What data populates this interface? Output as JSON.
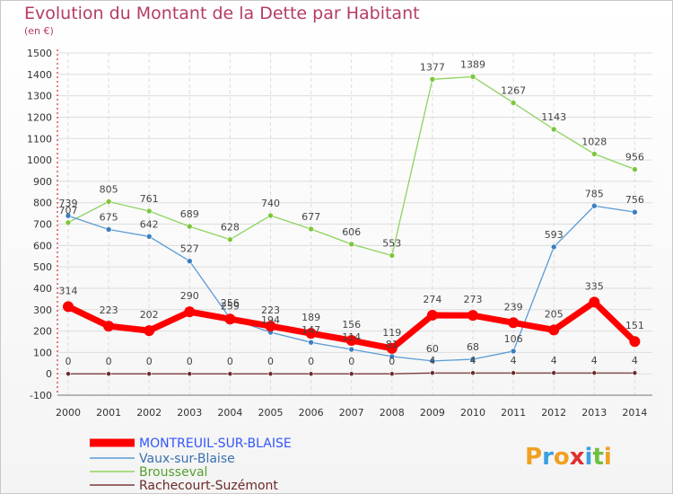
{
  "chart_data": {
    "type": "line",
    "title": "Evolution du Montant de la Dette par Habitant",
    "subtitle": "(en €)",
    "x": [
      "2000",
      "2001",
      "2002",
      "2003",
      "2004",
      "2005",
      "2006",
      "2007",
      "2008",
      "2009",
      "2010",
      "2011",
      "2012",
      "2013",
      "2014"
    ],
    "ylim": [
      -100,
      1500
    ],
    "yticks": [
      -100,
      0,
      100,
      200,
      300,
      400,
      500,
      600,
      700,
      800,
      900,
      1000,
      1100,
      1200,
      1300,
      1400,
      1500
    ],
    "grid": true,
    "legend_position": "bottom-left",
    "series": [
      {
        "name": "MONTREUIL-SUR-BLAISE",
        "color": "#ff0000",
        "values": [
          314,
          223,
          202,
          290,
          256,
          223,
          189,
          156,
          119,
          274,
          273,
          239,
          205,
          335,
          151
        ]
      },
      {
        "name": "Vaux-sur-Blaise",
        "color": "#5b9bd5",
        "values": [
          739,
          675,
          642,
          527,
          259,
          194,
          147,
          114,
          81,
          60,
          68,
          106,
          593,
          785,
          756
        ]
      },
      {
        "name": "Brousseval",
        "color": "#8dd35f",
        "values": [
          707,
          805,
          761,
          689,
          628,
          740,
          677,
          606,
          553,
          1377,
          1389,
          1267,
          1143,
          1028,
          956
        ]
      },
      {
        "name": "Rachecourt-Suzémont",
        "color": "#7a3b3b",
        "values": [
          0,
          0,
          0,
          0,
          0,
          0,
          0,
          0,
          0,
          4,
          4,
          4,
          4,
          4,
          4
        ]
      }
    ]
  },
  "logo": {
    "text": "Proxiti"
  }
}
